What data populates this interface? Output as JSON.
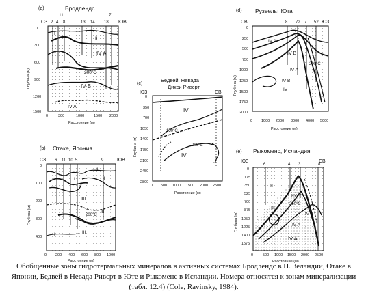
{
  "caption": "Обобщенные зоны гидротермальных минералов в активных системах Бродлендс в Н. Зеландии, Отаке в Японии, Бедвей в Невада Ривсрт в Юте и Рыкоменс в Исландии. Номера относятся к зонам минерализации (табл. 12.4) (Cole, Ravinsky, 1984).",
  "panels": {
    "a": {
      "letter": "(a)",
      "title": "Бродлендс",
      "dir_left": "СЗ",
      "dir_right": "ЮВ",
      "wells_top": [
        "11",
        "7"
      ],
      "wells": [
        "2",
        "4",
        "8",
        "13",
        "14",
        "18"
      ],
      "zones": [
        "I",
        "II",
        "IV A",
        "IV B",
        "IV A"
      ],
      "isotherm": "200°C",
      "ylabel": "Глубина (м)",
      "xlabel": "Расстояние (м)",
      "yticks": [
        "0",
        "300",
        "600",
        "900",
        "1200",
        "1500"
      ],
      "xticks": [
        "0",
        "300",
        "1000",
        "1500",
        "2000"
      ]
    },
    "b": {
      "letter": "(b)",
      "title": "Отаке, Япония",
      "dir_left": "СЗ",
      "dir_right": "ЮВ",
      "wells": [
        "6",
        "11",
        "10",
        "5",
        "9"
      ],
      "zones": [
        "II",
        "I",
        "II",
        "IIII",
        "III",
        "I",
        "III"
      ],
      "isotherm": "200°C",
      "ylabel": "Глубина (м)",
      "xlabel": "Расстояние (м)",
      "yticks": [
        "0",
        "100",
        "200",
        "300",
        "400"
      ],
      "xticks": [
        "0",
        "200",
        "400",
        "600",
        "800",
        "1000"
      ]
    },
    "c": {
      "letter": "(c)",
      "title": "Бедвей, Невада",
      "subtitle": "Дикси Ривсрт",
      "dir_left": "ЮЗ",
      "dir_right": "СВ",
      "zones": [
        "IV",
        "IV"
      ],
      "isotherms": [
        "150°C",
        "200°C"
      ],
      "ylabel": "Глубина (м)",
      "xlabel": "Расстояние (м)",
      "yticks": [
        "0",
        "350",
        "700",
        "1050",
        "1400",
        "1750",
        "2100",
        "2450",
        "2800"
      ],
      "xticks": [
        "0",
        "500",
        "1000",
        "1500",
        "2000",
        "2500"
      ]
    },
    "d": {
      "letter": "(d)",
      "title": "Рузвельт Юта",
      "dir_left": "СВ",
      "dir_right": "ЮЗ",
      "wells": [
        "8",
        "72",
        "7",
        "52"
      ],
      "zones": [
        "IV A",
        "IV B",
        "IV A",
        "IV B",
        "IV"
      ],
      "isotherm": "200°C",
      "ylabel": "Глубина (м)",
      "xlabel": "Расстояние (м)",
      "yticks": [
        "0",
        "250",
        "500",
        "750",
        "1000",
        "1250",
        "1500",
        "1750",
        "2000"
      ],
      "xticks": [
        "0",
        "1000",
        "2000",
        "3000",
        "4000",
        "5000"
      ]
    },
    "e": {
      "letter": "(e)",
      "title": "Рыкоменс, Исландия",
      "dir_left": "ЮЗ",
      "dir_right": "СВ",
      "wells": [
        "6",
        "4",
        "3",
        "8"
      ],
      "zones": [
        "II",
        "III",
        "IV A",
        "IV B",
        "IV A"
      ],
      "isotherms": [
        "200°C",
        "250°C"
      ],
      "ylabel": "Глубина (м)",
      "xlabel": "Расстояние (м)",
      "yticks": [
        "0",
        "175",
        "350",
        "525",
        "700",
        "875",
        "1050",
        "1225",
        "1400",
        "1575"
      ],
      "xticks": [
        "0",
        "500",
        "1000",
        "1500",
        "2000",
        "2500"
      ]
    }
  }
}
